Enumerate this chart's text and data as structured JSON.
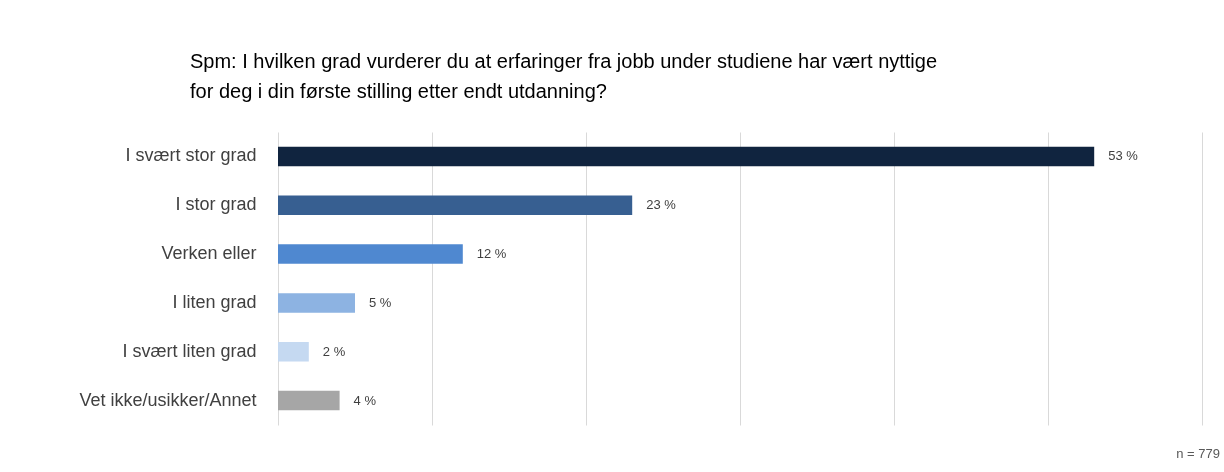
{
  "chart_data": {
    "type": "bar",
    "orientation": "horizontal",
    "title": "Spm: I hvilken grad vurderer du at erfaringer fra jobb under studiene har vært nyttige for deg i din første stilling etter endt utdanning?",
    "categories": [
      "I svært stor grad",
      "I stor grad",
      "Verken eller",
      "I liten grad",
      "I svært liten grad",
      "Vet ikke/usikker/Annet"
    ],
    "values": [
      53,
      23,
      12,
      5,
      2,
      4
    ],
    "colors": [
      "#10243f",
      "#375f91",
      "#4f88d0",
      "#8db3e2",
      "#c5d9f1",
      "#a6a6a6"
    ],
    "value_labels": [
      "53 %",
      "23 %",
      "12 %",
      "5 %",
      "2 %",
      "4 %"
    ],
    "xlim": [
      0,
      60
    ],
    "xticks": [
      {
        "value": 0,
        "label": null
      },
      {
        "value": 10,
        "label": null
      },
      {
        "value": 20,
        "label": null
      },
      {
        "value": 30,
        "label": null
      },
      {
        "value": 40,
        "label": null
      },
      {
        "value": 50,
        "label": null
      },
      {
        "value": 60,
        "label": null
      }
    ],
    "grid": "x",
    "tick_labels": "y",
    "legend": false,
    "annotations": [
      "n = 779"
    ]
  }
}
